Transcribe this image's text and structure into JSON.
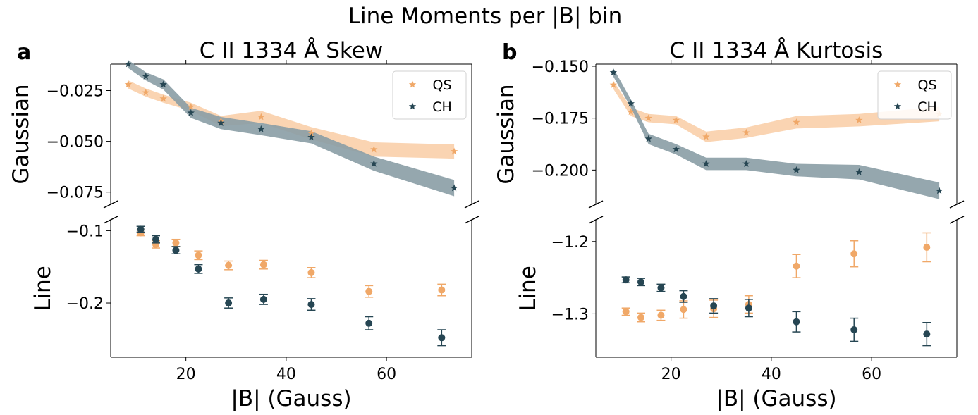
{
  "figure": {
    "suptitle": "Line Moments per |B| bin"
  },
  "colors": {
    "QS": "#f0a868",
    "CH": "#264653",
    "QS_band": "#f9cfaa",
    "CH_band": "#8a9da5"
  },
  "chart_data": [
    {
      "type": "scatter",
      "panel_label": "a",
      "title": "C II 1334 Å Skew",
      "xlabel": "|B| (Gauss)",
      "xlim": [
        5,
        77
      ],
      "xticks": [
        20,
        40,
        60
      ],
      "legend": {
        "placement": "top-right",
        "entries": [
          "QS",
          "CH"
        ]
      },
      "upper": {
        "ylabel": "Gaussian",
        "ylim": [
          -0.081,
          -0.012
        ],
        "yticks": [
          -0.025,
          -0.05,
          -0.075
        ],
        "ytick_labels": [
          "−0.025",
          "−0.050",
          "−0.075"
        ],
        "series": [
          {
            "name": "QS",
            "x": [
              8.5,
              12,
              15.5,
              21,
              27,
              35,
              45,
              57.5,
              73.5
            ],
            "y": [
              -0.022,
              -0.026,
              -0.029,
              -0.033,
              -0.04,
              -0.038,
              -0.046,
              -0.054,
              -0.055
            ],
            "band": [
              0.002,
              0.002,
              0.002,
              0.002,
              0.0025,
              0.003,
              0.003,
              0.0035,
              0.0035
            ]
          },
          {
            "name": "CH",
            "x": [
              8.5,
              12,
              15.5,
              21,
              27,
              35,
              45,
              57.5,
              73.5
            ],
            "y": [
              -0.012,
              -0.018,
              -0.022,
              -0.036,
              -0.041,
              -0.044,
              -0.048,
              -0.061,
              -0.073
            ],
            "band": [
              0.002,
              0.002,
              0.0025,
              0.0025,
              0.003,
              0.003,
              0.003,
              0.0035,
              0.004
            ]
          }
        ]
      },
      "lower": {
        "ylabel": "Line",
        "ylim": [
          -0.275,
          -0.085
        ],
        "yticks": [
          -0.1,
          -0.2
        ],
        "ytick_labels": [
          "−0.1",
          "−0.2"
        ],
        "series": [
          {
            "name": "QS",
            "x": [
              11,
              14,
              18,
              22.5,
              28.5,
              35.5,
              45,
              56.5,
              71
            ],
            "y": [
              -0.103,
              -0.119,
              -0.117,
              -0.134,
              -0.148,
              -0.147,
              -0.158,
              -0.184,
              -0.182
            ],
            "err": [
              0.004,
              0.005,
              0.005,
              0.006,
              0.006,
              0.006,
              0.007,
              0.008,
              0.008
            ]
          },
          {
            "name": "CH",
            "x": [
              11,
              14,
              18,
              22.5,
              28.5,
              35.5,
              45,
              56.5,
              71
            ],
            "y": [
              -0.098,
              -0.112,
              -0.127,
              -0.153,
              -0.2,
              -0.195,
              -0.202,
              -0.228,
              -0.248
            ],
            "err": [
              0.004,
              0.005,
              0.005,
              0.006,
              0.007,
              0.007,
              0.008,
              0.009,
              0.011
            ]
          }
        ]
      }
    },
    {
      "type": "scatter",
      "panel_label": "b",
      "title": "C II 1334 Å Kurtosis",
      "xlabel": "|B| (Gauss)",
      "xlim": [
        5,
        77
      ],
      "xticks": [
        20,
        40,
        60
      ],
      "legend": {
        "placement": "top-right",
        "entries": [
          "QS",
          "CH"
        ]
      },
      "upper": {
        "ylabel": "Gaussian",
        "ylim": [
          -0.2165,
          -0.149
        ],
        "yticks": [
          -0.15,
          -0.175,
          -0.2
        ],
        "ytick_labels": [
          "−0.150",
          "−0.175",
          "−0.200"
        ],
        "series": [
          {
            "name": "QS",
            "x": [
              8.5,
              12,
              15.5,
              21,
              27,
              35,
              45,
              57.5,
              73.5
            ],
            "y": [
              -0.159,
              -0.172,
              -0.175,
              -0.176,
              -0.184,
              -0.182,
              -0.177,
              -0.176,
              -0.173
            ],
            "band": [
              0.002,
              0.002,
              0.002,
              0.002,
              0.0025,
              0.0025,
              0.003,
              0.003,
              0.0035
            ]
          },
          {
            "name": "CH",
            "x": [
              8.5,
              12,
              15.5,
              21,
              27,
              35,
              45,
              57.5,
              73.5
            ],
            "y": [
              -0.153,
              -0.168,
              -0.185,
              -0.19,
              -0.197,
              -0.197,
              -0.2,
              -0.201,
              -0.21
            ],
            "band": [
              0.002,
              0.002,
              0.0025,
              0.0025,
              0.003,
              0.003,
              0.003,
              0.0035,
              0.004
            ]
          }
        ]
      },
      "lower": {
        "ylabel": "Line",
        "ylim": [
          -1.36,
          -1.17
        ],
        "yticks": [
          -1.2,
          -1.3
        ],
        "ytick_labels": [
          "−1.2",
          "−1.3"
        ],
        "series": [
          {
            "name": "QS",
            "x": [
              11,
              14,
              18,
              22.5,
              28.5,
              35.5,
              45,
              56.5,
              71
            ],
            "y": [
              -1.297,
              -1.305,
              -1.302,
              -1.294,
              -1.293,
              -1.287,
              -1.234,
              -1.217,
              -1.208
            ],
            "err": [
              0.005,
              0.006,
              0.007,
              0.012,
              0.012,
              0.012,
              0.016,
              0.018,
              0.02
            ]
          },
          {
            "name": "CH",
            "x": [
              11,
              14,
              18,
              22.5,
              28.5,
              35.5,
              45,
              56.5,
              71
            ],
            "y": [
              -1.253,
              -1.256,
              -1.264,
              -1.276,
              -1.289,
              -1.292,
              -1.311,
              -1.322,
              -1.328
            ],
            "err": [
              0.004,
              0.005,
              0.005,
              0.008,
              0.01,
              0.012,
              0.014,
              0.016,
              0.016
            ]
          }
        ]
      }
    }
  ]
}
